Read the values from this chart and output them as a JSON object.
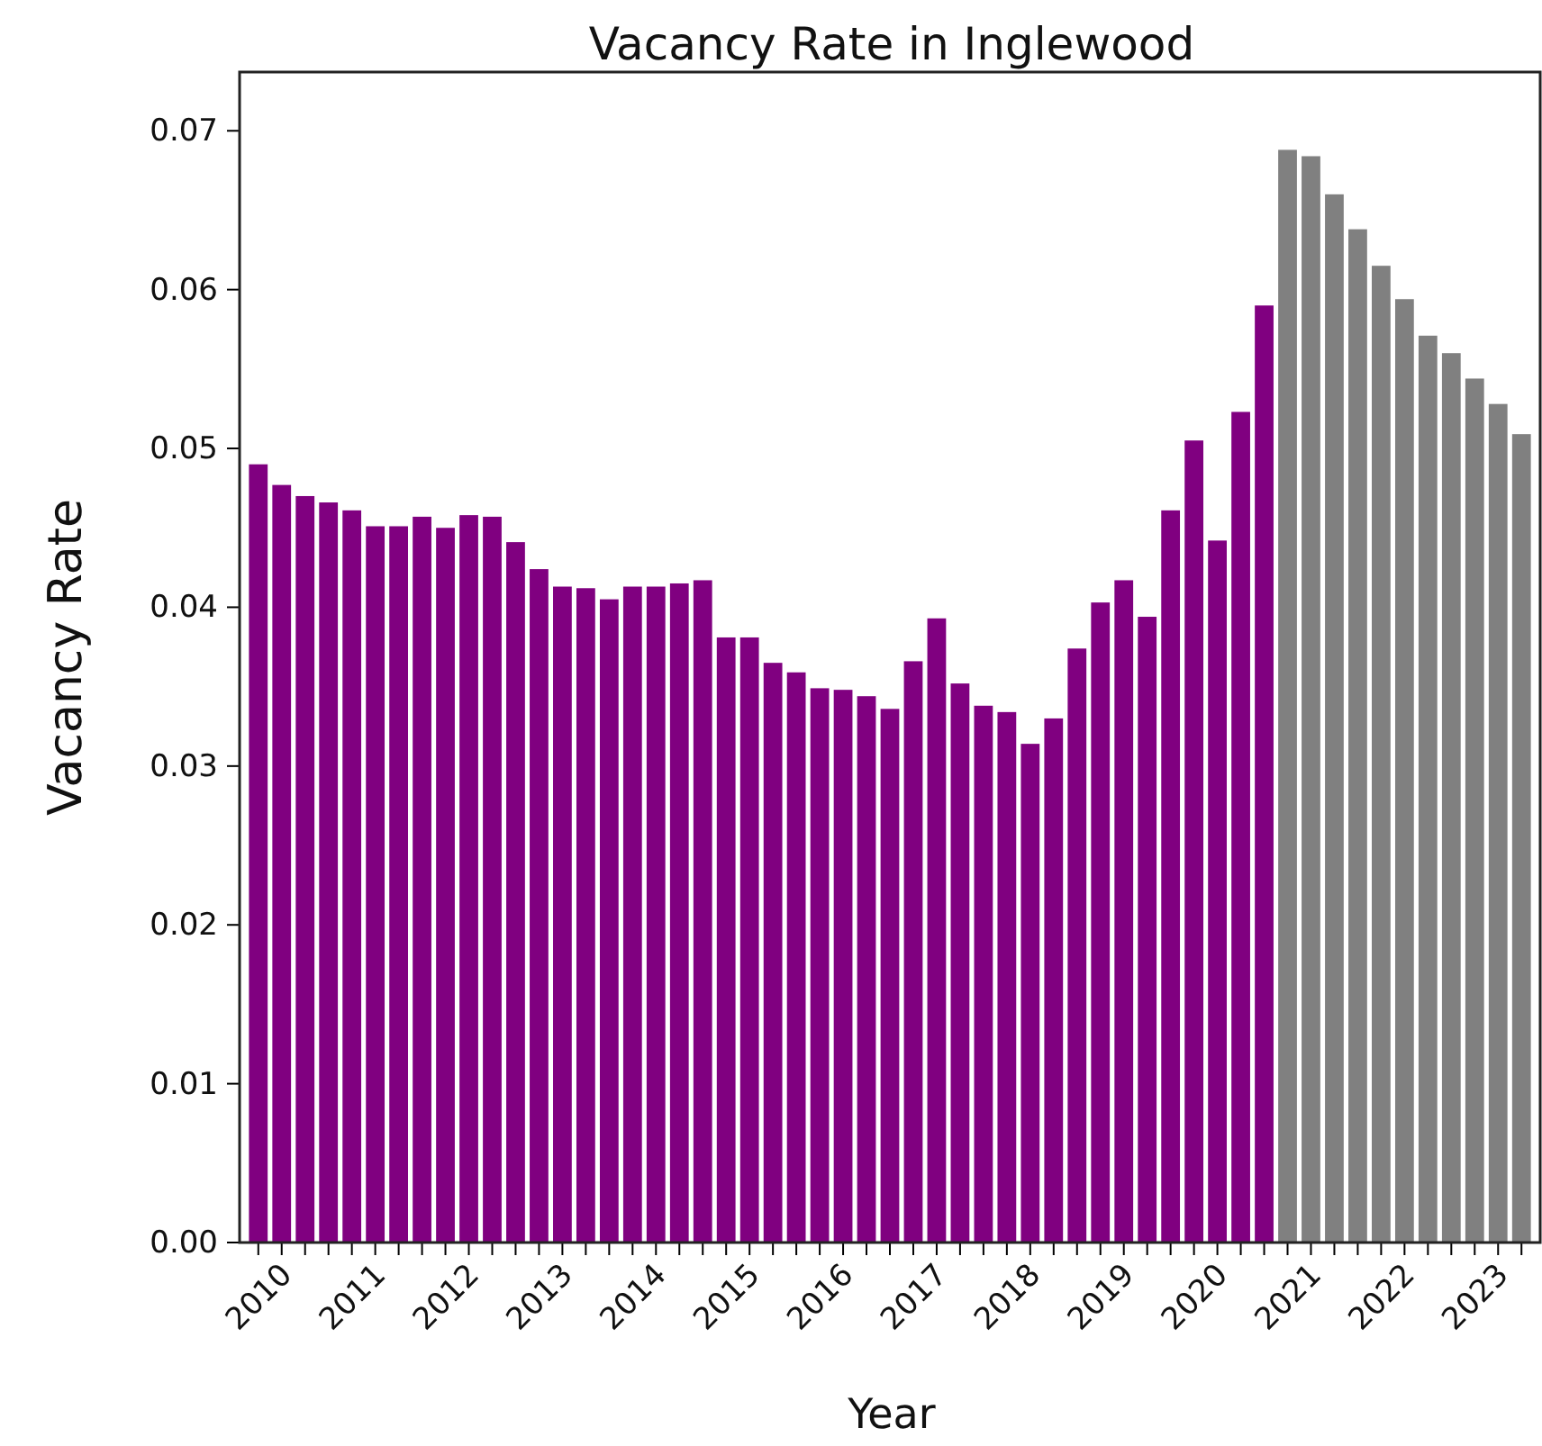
{
  "chart_data": {
    "type": "bar",
    "title": "Vacancy Rate in Inglewood",
    "xlabel": "Year",
    "ylabel": "Vacancy Rate",
    "categories": [
      "2010",
      null,
      null,
      null,
      "2011",
      null,
      null,
      null,
      "2012",
      null,
      null,
      null,
      "2013",
      null,
      null,
      null,
      "2014",
      null,
      null,
      null,
      "2015",
      null,
      null,
      null,
      "2016",
      null,
      null,
      null,
      "2017",
      null,
      null,
      null,
      "2018",
      null,
      null,
      null,
      "2019",
      null,
      null,
      null,
      "2020",
      null,
      null,
      null,
      "2021",
      null,
      null,
      null,
      "2022",
      null,
      null,
      null,
      "2023",
      null,
      null
    ],
    "values": [
      0.049,
      0.0477,
      0.047,
      0.0466,
      0.0461,
      0.0451,
      0.0451,
      0.0457,
      0.045,
      0.0458,
      0.0457,
      0.0441,
      0.0424,
      0.0413,
      0.0412,
      0.0405,
      0.0413,
      0.0413,
      0.0415,
      0.0417,
      0.0381,
      0.0381,
      0.0365,
      0.0359,
      0.0349,
      0.0348,
      0.0344,
      0.0336,
      0.0366,
      0.0393,
      0.0352,
      0.0338,
      0.0334,
      0.0314,
      0.033,
      0.0374,
      0.0403,
      0.0417,
      0.0394,
      0.0461,
      0.0505,
      0.0442,
      0.0523,
      0.059,
      0.0688,
      0.0684,
      0.066,
      0.0638,
      0.0615,
      0.0594,
      0.0571,
      0.056,
      0.0544,
      0.0528,
      0.0509
    ],
    "colors": [
      "#800080",
      "#800080",
      "#800080",
      "#800080",
      "#800080",
      "#800080",
      "#800080",
      "#800080",
      "#800080",
      "#800080",
      "#800080",
      "#800080",
      "#800080",
      "#800080",
      "#800080",
      "#800080",
      "#800080",
      "#800080",
      "#800080",
      "#800080",
      "#800080",
      "#800080",
      "#800080",
      "#800080",
      "#800080",
      "#800080",
      "#800080",
      "#800080",
      "#800080",
      "#800080",
      "#800080",
      "#800080",
      "#800080",
      "#800080",
      "#800080",
      "#800080",
      "#800080",
      "#800080",
      "#800080",
      "#800080",
      "#800080",
      "#800080",
      "#800080",
      "#800080",
      "#808080",
      "#808080",
      "#808080",
      "#808080",
      "#808080",
      "#808080",
      "#808080",
      "#808080",
      "#808080",
      "#808080",
      "#808080"
    ],
    "ylim": [
      0,
      0.0737
    ],
    "yticks": [
      {
        "value": 0,
        "label": "0.00"
      },
      {
        "value": 0.01,
        "label": "0.01"
      },
      {
        "value": 0.02,
        "label": "0.02"
      },
      {
        "value": 0.03,
        "label": "0.03"
      },
      {
        "value": 0.04,
        "label": "0.04"
      },
      {
        "value": 0.05,
        "label": "0.05"
      },
      {
        "value": 0.06,
        "label": "0.06"
      },
      {
        "value": 0.07,
        "label": "0.07"
      }
    ],
    "grid": false
  }
}
